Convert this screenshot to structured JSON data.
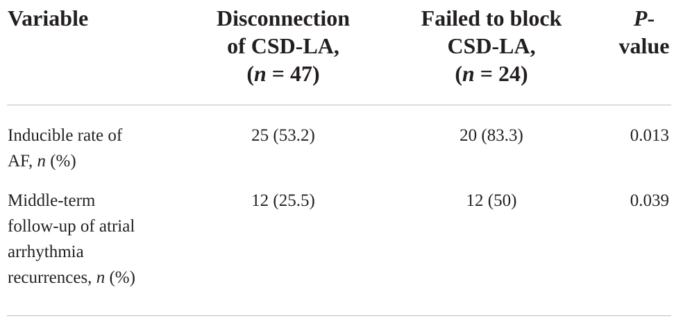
{
  "table": {
    "headers": {
      "variable": "Variable",
      "disconnection": [
        "Disconnection",
        "of CSD-LA,",
        "(n = 47)"
      ],
      "failed": [
        "Failed to block",
        "CSD-LA,",
        "(n = 24)"
      ],
      "pvalue": [
        "P-",
        "value"
      ]
    },
    "rows": [
      {
        "variable_lines": [
          "Inducible rate of",
          "AF, n (%)"
        ],
        "disconnection": "25 (53.2)",
        "failed": "20 (83.3)",
        "pvalue": "0.013"
      },
      {
        "variable_lines": [
          "Middle-term",
          "follow-up of atrial",
          "arrhythmia",
          "recurrences, n (%)"
        ],
        "disconnection": "12 (25.5)",
        "failed": "12 (50)",
        "pvalue": "0.039"
      }
    ]
  }
}
